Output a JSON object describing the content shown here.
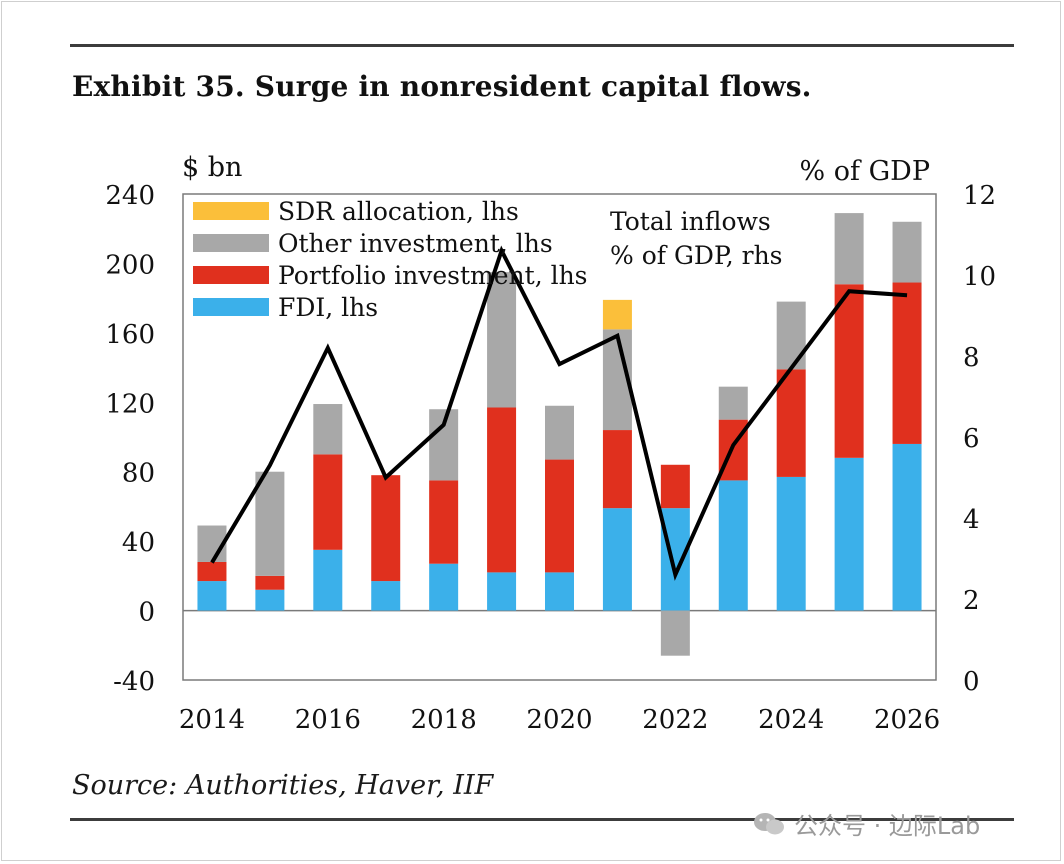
{
  "title": "Exhibit 35. Surge in nonresident capital flows.",
  "source": "Source: Authorities, Haver, IIF",
  "watermark": "公众号 · 边际Lab",
  "chart_data": {
    "type": "bar",
    "stacked": true,
    "left_unit": "$ bn",
    "right_unit": "% of GDP",
    "ylim": [
      -40,
      240
    ],
    "yticks": [
      "-40",
      "0",
      "40",
      "80",
      "120",
      "160",
      "200",
      "240"
    ],
    "y2lim": [
      0,
      12
    ],
    "y2ticks": [
      "0",
      "2",
      "4",
      "6",
      "8",
      "10",
      "12"
    ],
    "categories": [
      "2014",
      "2015",
      "2016",
      "2017",
      "2018",
      "2019",
      "2020",
      "2021",
      "2022",
      "2023",
      "2024",
      "2025",
      "2026"
    ],
    "xtick_labels": [
      "2014",
      "2016",
      "2018",
      "2020",
      "2022",
      "2024",
      "2026"
    ],
    "series": [
      {
        "name": "FDI, lhs",
        "color": "#3bb0ea",
        "values": [
          17,
          12,
          35,
          17,
          27,
          22,
          22,
          59,
          59,
          75,
          77,
          88,
          96
        ]
      },
      {
        "name": "Portfolio investment, lhs",
        "color": "#e0301e",
        "values": [
          11,
          8,
          55,
          61,
          48,
          95,
          65,
          45,
          25,
          35,
          62,
          100,
          93
        ]
      },
      {
        "name": "Other investment, lhs",
        "color": "#a8a8a8",
        "values": [
          21,
          60,
          29,
          0,
          41,
          78,
          31,
          58,
          -26,
          19,
          39,
          41,
          35
        ]
      },
      {
        "name": "SDR allocation, lhs",
        "color": "#fbbf3a",
        "values": [
          0,
          0,
          0,
          0,
          0,
          0,
          0,
          17,
          0,
          0,
          0,
          0,
          0
        ]
      }
    ],
    "legend_order": [
      "SDR allocation, lhs",
      "Other investment, lhs",
      "Portfolio investment, lhs",
      "FDI, lhs"
    ],
    "line": {
      "name": "Total inflows % of GDP, rhs",
      "label_lines": [
        "Total inflows",
        "% of GDP, rhs"
      ],
      "color": "#000000",
      "values": [
        2.9,
        5.3,
        8.2,
        5.0,
        6.3,
        10.6,
        7.8,
        8.5,
        2.6,
        5.8,
        7.7,
        9.6,
        9.5
      ]
    }
  }
}
